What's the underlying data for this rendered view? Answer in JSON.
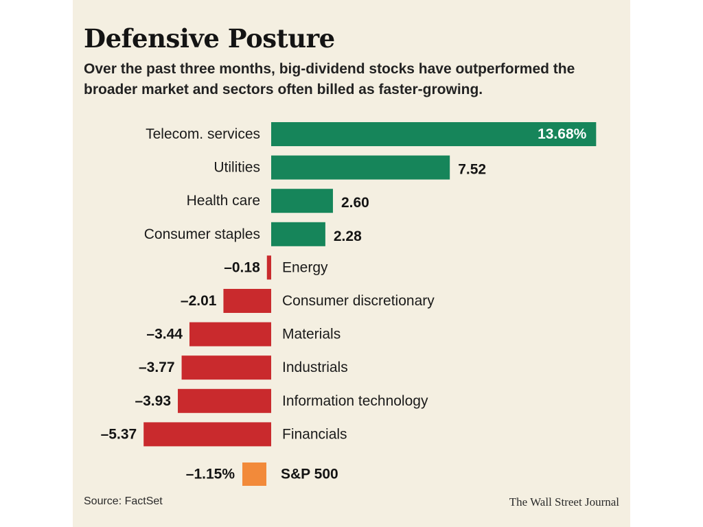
{
  "header": {
    "title": "Defensive Posture",
    "subtitle": "Over the past three months, big-dividend stocks have outperformed the broader market and sectors often billed as faster-growing."
  },
  "footer": {
    "source": "Source: FactSet",
    "credit": "The Wall Street Journal"
  },
  "colors": {
    "positive": "#16855a",
    "negative": "#c92a2d",
    "reference": "#f28a3a",
    "background": "#f4efe1"
  },
  "chart_data": {
    "type": "bar",
    "orientation": "horizontal",
    "title": "Defensive Posture",
    "subtitle": "Over the past three months, big-dividend stocks have outperformed the broader market and sectors often billed as faster-growing.",
    "categories": [
      "Telecom. services",
      "Utilities",
      "Health care",
      "Consumer staples",
      "Energy",
      "Consumer discretionary",
      "Materials",
      "Industrials",
      "Information technology",
      "Financials"
    ],
    "values": [
      13.68,
      7.52,
      2.6,
      2.28,
      -0.18,
      -2.01,
      -3.44,
      -3.77,
      -3.93,
      -5.37
    ],
    "value_labels": [
      "13.68%",
      "7.52",
      "2.60",
      "2.28",
      "–0.18",
      "–2.01",
      "–3.44",
      "–3.77",
      "–3.93",
      "–5.37"
    ],
    "reference": {
      "label": "S&P 500",
      "value": -1.15,
      "value_label": "–1.15%"
    },
    "unit": "%",
    "xlabel": "",
    "ylabel": "",
    "xlim": [
      -5.37,
      13.68
    ],
    "grid": false,
    "legend": "none"
  }
}
